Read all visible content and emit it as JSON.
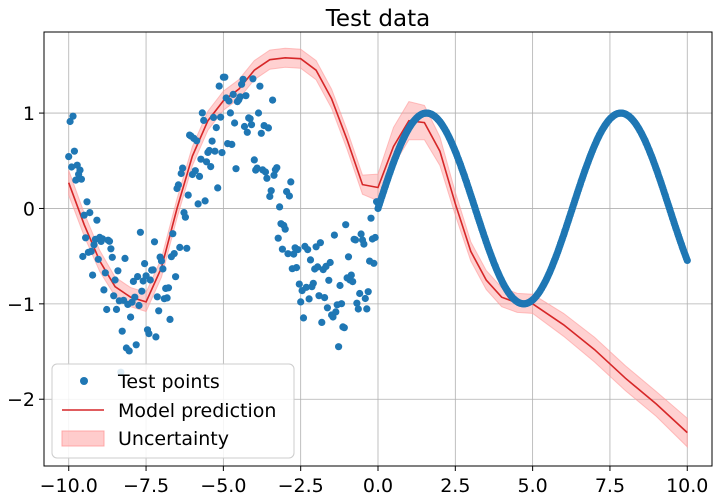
{
  "chart_data": {
    "type": "scatter",
    "title": "Test data",
    "xlabel": "",
    "ylabel": "",
    "xlim": [
      -10.8,
      10.8
    ],
    "ylim": [
      -2.7,
      1.85
    ],
    "xticks": [
      -10.0,
      -7.5,
      -5.0,
      -2.5,
      0.0,
      2.5,
      5.0,
      7.5,
      10.0
    ],
    "xtick_labels": [
      "−10.0",
      "−7.5",
      "−5.0",
      "−2.5",
      "0.0",
      "2.5",
      "5.0",
      "7.5",
      "10.0"
    ],
    "yticks": [
      -2,
      -1,
      0,
      1
    ],
    "ytick_labels": [
      "−2",
      "−1",
      "0",
      "1"
    ],
    "grid": true,
    "legend_position": "lower-left",
    "colors": {
      "points": "#1f77b4",
      "prediction": "#d62728",
      "uncertainty": "#ff9999"
    },
    "series": [
      {
        "name": "Test points",
        "kind": "scatter",
        "description": "sin(x) sampled on [-10,10]; noisy for x<0, smooth for x>=0",
        "sampled_function": {
          "x_range": [
            -10,
            10
          ],
          "negative_half_noise": "approx ±0.35",
          "positive_half": "sin(x), dense"
        }
      },
      {
        "name": "Model prediction",
        "kind": "line",
        "x": [
          -10,
          -9.5,
          -9,
          -8.5,
          -8,
          -7.5,
          -7,
          -6.5,
          -6,
          -5.5,
          -5,
          -4.5,
          -4,
          -3.5,
          -3,
          -2.5,
          -2,
          -1.5,
          -1,
          -0.5,
          0,
          0.5,
          1,
          1.5,
          2,
          2.5,
          3,
          3.5,
          4,
          4.5,
          5,
          6,
          7,
          8,
          9,
          10
        ],
        "y": [
          0.27,
          -0.17,
          -0.55,
          -0.82,
          -0.93,
          -0.98,
          -0.62,
          0.0,
          0.55,
          0.92,
          1.13,
          1.25,
          1.45,
          1.56,
          1.58,
          1.57,
          1.45,
          1.15,
          0.72,
          0.25,
          0.22,
          0.65,
          0.92,
          0.9,
          0.6,
          0.05,
          -0.45,
          -0.75,
          -0.93,
          -0.99,
          -1.0,
          -1.22,
          -1.48,
          -1.78,
          -2.05,
          -2.35
        ]
      },
      {
        "name": "Uncertainty",
        "kind": "band",
        "x": [
          -10,
          -9.5,
          -9,
          -8.5,
          -8,
          -7.5,
          -7,
          -6.5,
          -6,
          -5.5,
          -5,
          -4.5,
          -4,
          -3.5,
          -3,
          -2.5,
          -2,
          -1.5,
          -1,
          -0.5,
          0,
          0.5,
          1,
          1.5,
          2,
          2.5,
          3,
          3.5,
          4,
          4.5,
          5,
          6,
          7,
          8,
          9,
          10
        ],
        "half_width": [
          0.13,
          0.12,
          0.11,
          0.1,
          0.1,
          0.1,
          0.1,
          0.1,
          0.1,
          0.1,
          0.1,
          0.1,
          0.1,
          0.1,
          0.1,
          0.1,
          0.1,
          0.1,
          0.1,
          0.1,
          0.14,
          0.2,
          0.2,
          0.18,
          0.15,
          0.12,
          0.1,
          0.1,
          0.1,
          0.1,
          0.1,
          0.12,
          0.13,
          0.13,
          0.13,
          0.15
        ]
      }
    ]
  }
}
